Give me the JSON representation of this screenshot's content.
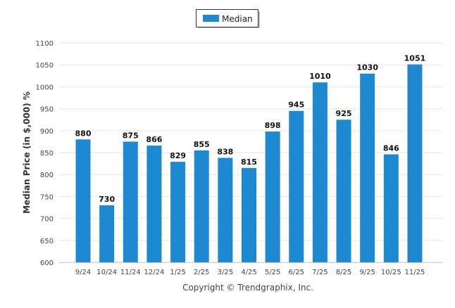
{
  "chart_data": {
    "type": "bar",
    "title": "",
    "xlabel": "",
    "ylabel": "Median Price (in $,000) %",
    "ylim": [
      600,
      1100
    ],
    "yticks": [
      600,
      650,
      700,
      750,
      800,
      850,
      900,
      950,
      1000,
      1050,
      1100
    ],
    "grid": true,
    "legend": {
      "position": "top-center",
      "entries": [
        "Median"
      ]
    },
    "categories": [
      "9/24",
      "10/24",
      "11/24",
      "12/24",
      "1/25",
      "2/25",
      "3/25",
      "4/25",
      "5/25",
      "6/25",
      "7/25",
      "8/25",
      "9/25",
      "10/25",
      "11/25"
    ],
    "series": [
      {
        "name": "Median",
        "color": "#1e88d0",
        "values": [
          880,
          730,
          875,
          866,
          829,
          855,
          838,
          815,
          898,
          945,
          1010,
          925,
          1030,
          846,
          1051
        ]
      }
    ],
    "footer": "Copyright © Trendgraphix, Inc."
  }
}
